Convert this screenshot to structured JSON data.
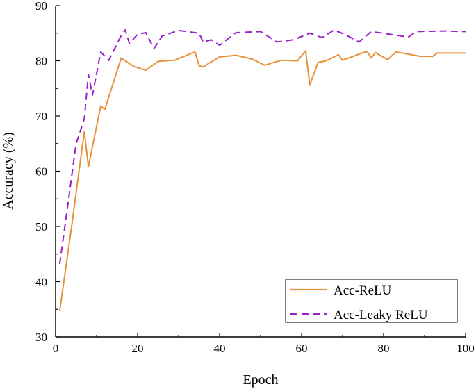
{
  "chart_data": {
    "type": "line",
    "title": "",
    "xlabel": "Epoch",
    "ylabel": "Accuracy (%)",
    "xlim": [
      0,
      100
    ],
    "ylim": [
      30,
      90
    ],
    "xticks": [
      0,
      20,
      40,
      60,
      80,
      100
    ],
    "yticks": [
      30,
      40,
      50,
      60,
      70,
      80,
      90
    ],
    "grid": false,
    "legend_position": "bottom-right",
    "series": [
      {
        "name": "Acc-ReLU",
        "color": "#E8913A",
        "dash": "solid",
        "x": [
          1,
          4,
          7,
          8,
          11,
          12,
          16,
          19,
          22,
          25,
          29,
          34,
          35,
          36,
          40,
          44,
          48,
          51,
          55,
          59,
          61,
          62,
          64,
          66,
          69,
          70,
          74,
          76,
          77,
          78,
          81,
          83,
          89,
          92,
          93,
          100
        ],
        "y": [
          34.7,
          50.5,
          67.2,
          60.8,
          71.8,
          71.2,
          80.5,
          79.0,
          78.3,
          79.9,
          80.1,
          81.6,
          79.1,
          78.9,
          80.7,
          81.0,
          80.3,
          79.2,
          80.1,
          80.0,
          81.8,
          75.6,
          79.7,
          80.0,
          81.1,
          80.1,
          81.2,
          81.7,
          80.5,
          81.5,
          80.2,
          81.6,
          80.8,
          80.8,
          81.4,
          81.4
        ]
      },
      {
        "name": "Acc-Leaky ReLU",
        "color": "#9B1FC9",
        "dash": "dashed",
        "x": [
          1,
          3,
          5,
          7,
          8,
          9,
          11,
          13,
          16,
          17,
          18,
          20,
          22,
          24,
          26,
          30,
          35,
          36,
          38,
          40,
          44,
          50,
          54,
          58,
          62,
          65,
          68,
          71,
          74,
          77,
          86,
          88,
          95,
          100
        ],
        "y": [
          43.2,
          54.0,
          65.0,
          69.5,
          77.5,
          73.8,
          81.6,
          80.1,
          84.6,
          85.6,
          83.1,
          84.8,
          85.1,
          82.2,
          84.5,
          85.5,
          85.0,
          83.4,
          83.8,
          82.8,
          85.1,
          85.3,
          83.4,
          83.8,
          85.0,
          84.2,
          85.6,
          84.6,
          83.4,
          85.3,
          84.3,
          85.3,
          85.4,
          85.3
        ]
      }
    ]
  }
}
